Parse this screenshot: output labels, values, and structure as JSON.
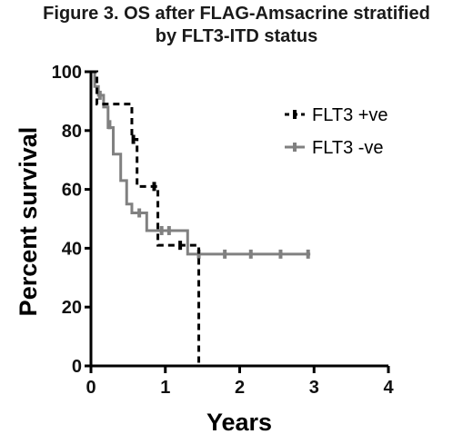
{
  "chart_data": {
    "type": "line",
    "title_line1": "Figure 3. OS after FLAG-Amsacrine stratified",
    "title_line2": "by FLT3-ITD status",
    "xlabel": "Years",
    "ylabel": "Percent survival",
    "xlim": [
      0,
      4
    ],
    "ylim": [
      0,
      100
    ],
    "x_ticks": [
      "0",
      "1",
      "2",
      "3",
      "4"
    ],
    "y_ticks": [
      "0",
      "20",
      "40",
      "60",
      "80",
      "100"
    ],
    "legend_position": "top-right",
    "series": [
      {
        "name": "FLT3 +ve",
        "style": "dashed",
        "color": "#000000",
        "steps": [
          [
            0,
            100
          ],
          [
            0.08,
            89
          ],
          [
            0.3,
            89
          ],
          [
            0.55,
            77
          ],
          [
            0.62,
            61
          ],
          [
            0.9,
            41
          ],
          [
            1.45,
            38
          ],
          [
            1.45,
            0
          ]
        ],
        "censored": [
          [
            0.57,
            77
          ],
          [
            0.85,
            61
          ],
          [
            1.2,
            41
          ]
        ]
      },
      {
        "name": "FLT3 -ve",
        "style": "solid",
        "color": "#808080",
        "steps": [
          [
            0,
            100
          ],
          [
            0.05,
            95
          ],
          [
            0.1,
            92
          ],
          [
            0.17,
            88
          ],
          [
            0.23,
            81
          ],
          [
            0.3,
            72
          ],
          [
            0.4,
            63
          ],
          [
            0.48,
            55
          ],
          [
            0.55,
            52
          ],
          [
            0.75,
            46
          ],
          [
            1.3,
            38
          ],
          [
            2.95,
            38
          ]
        ],
        "censored": [
          [
            0.12,
            92
          ],
          [
            0.25,
            82
          ],
          [
            0.65,
            52
          ],
          [
            0.95,
            46
          ],
          [
            1.05,
            46
          ],
          [
            1.45,
            38
          ],
          [
            1.8,
            38
          ],
          [
            2.15,
            38
          ],
          [
            2.55,
            38
          ],
          [
            2.92,
            38
          ]
        ]
      }
    ]
  }
}
